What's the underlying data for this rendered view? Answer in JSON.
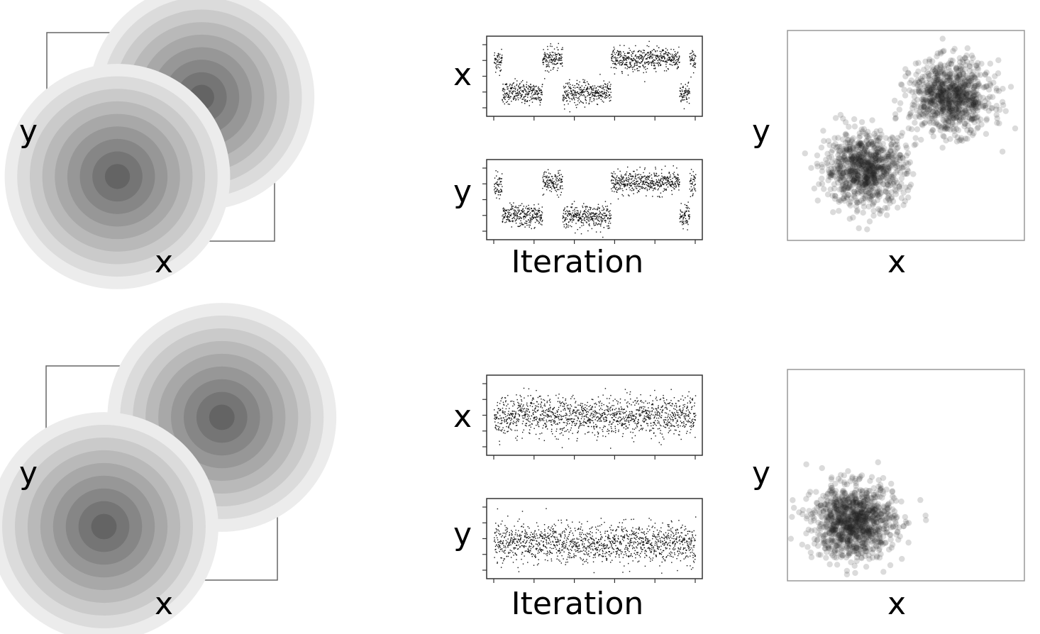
{
  "chart_data": [
    {
      "type": "heatmap",
      "panel": "top-target-density",
      "xlabel": "x",
      "ylabel": "y",
      "axes_ticks": false,
      "modes": [
        {
          "x": 0.68,
          "y": 0.69,
          "sd": 0.055
        },
        {
          "x": 0.31,
          "y": 0.31,
          "sd": 0.055
        }
      ]
    },
    {
      "type": "scatter",
      "panel": "top-trace",
      "xlabel": "Iteration",
      "traces": [
        {
          "ylabel": "x",
          "segments": [
            {
              "from": 0.0,
              "to": 0.04,
              "level": 0.7
            },
            {
              "from": 0.04,
              "to": 0.24,
              "level": 0.3
            },
            {
              "from": 0.24,
              "to": 0.34,
              "level": 0.72
            },
            {
              "from": 0.34,
              "to": 0.58,
              "level": 0.3
            },
            {
              "from": 0.58,
              "to": 0.92,
              "level": 0.72
            },
            {
              "from": 0.92,
              "to": 0.97,
              "level": 0.3
            },
            {
              "from": 0.97,
              "to": 1.0,
              "level": 0.7
            }
          ]
        },
        {
          "ylabel": "y",
          "segments": [
            {
              "from": 0.0,
              "to": 0.04,
              "level": 0.7
            },
            {
              "from": 0.04,
              "to": 0.24,
              "level": 0.3
            },
            {
              "from": 0.24,
              "to": 0.34,
              "level": 0.72
            },
            {
              "from": 0.34,
              "to": 0.58,
              "level": 0.3
            },
            {
              "from": 0.58,
              "to": 0.92,
              "level": 0.72
            },
            {
              "from": 0.92,
              "to": 0.97,
              "level": 0.3
            },
            {
              "from": 0.97,
              "to": 1.0,
              "level": 0.7
            }
          ]
        }
      ]
    },
    {
      "type": "scatter",
      "panel": "top-samples",
      "xlabel": "x",
      "ylabel": "y",
      "clusters": [
        {
          "x": 0.69,
          "y": 0.68,
          "sd": 0.085
        },
        {
          "x": 0.33,
          "y": 0.34,
          "sd": 0.085
        }
      ]
    },
    {
      "type": "heatmap",
      "panel": "bottom-target-density",
      "xlabel": "x",
      "ylabel": "y",
      "axes_ticks": false,
      "modes": [
        {
          "x": 0.76,
          "y": 0.76,
          "sd": 0.055
        },
        {
          "x": 0.25,
          "y": 0.25,
          "sd": 0.055
        }
      ]
    },
    {
      "type": "scatter",
      "panel": "bottom-trace",
      "xlabel": "Iteration",
      "traces": [
        {
          "ylabel": "x",
          "segments": [
            {
              "from": 0.0,
              "to": 1.0,
              "level": 0.5
            }
          ]
        },
        {
          "ylabel": "y",
          "segments": [
            {
              "from": 0.0,
              "to": 1.0,
              "level": 0.45
            }
          ]
        }
      ]
    },
    {
      "type": "scatter",
      "panel": "bottom-samples",
      "xlabel": "x",
      "ylabel": "y",
      "clusters": [
        {
          "x": 0.28,
          "y": 0.28,
          "sd": 0.085
        }
      ]
    }
  ]
}
